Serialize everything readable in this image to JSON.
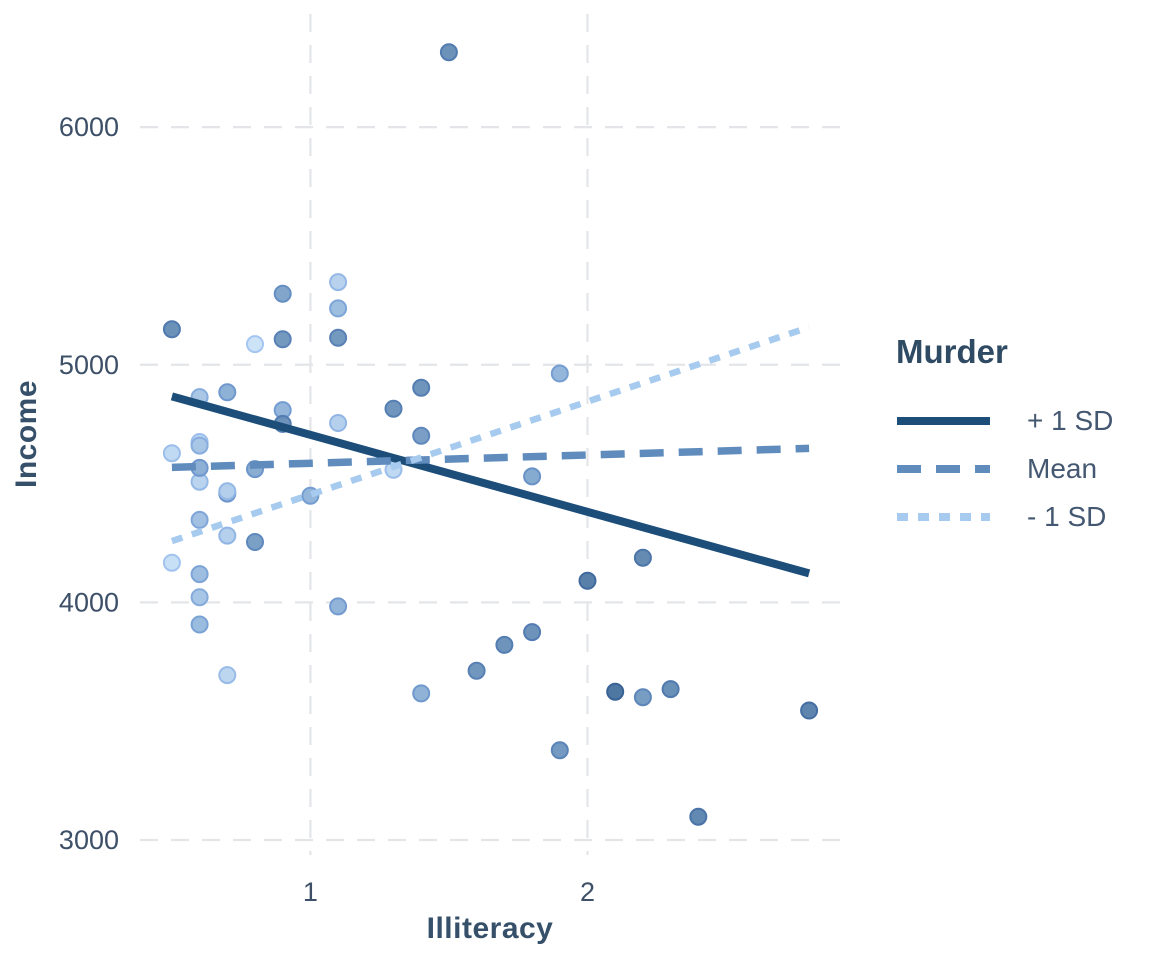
{
  "colors": {
    "background": "#ffffff",
    "grid": "#e3e5e8",
    "tick_label": "#3d5068",
    "axis_title": "#36506a",
    "legend_title": "#2f4a63",
    "legend_label": "#445871",
    "point_gradient": [
      {
        "value": 1.4,
        "color": "#c9e1f8"
      },
      {
        "value": 6.0,
        "color": "#8fb3d9"
      },
      {
        "value": 15.1,
        "color": "#45709c"
      }
    ]
  },
  "chart_data": {
    "type": "scatter",
    "title": "",
    "xlabel": "Illiteracy",
    "ylabel": "Income",
    "legend_title": "Murder",
    "legend_position": "right",
    "grid": true,
    "x_ticks": [
      1,
      2
    ],
    "y_ticks": [
      3000,
      4000,
      5000,
      6000
    ],
    "xlim": [
      0.385,
      2.915
    ],
    "ylim": [
      2937,
      6476
    ],
    "point_fields": [
      "illiteracy",
      "income",
      "murder"
    ],
    "points": [
      [
        2.1,
        3624,
        15.1
      ],
      [
        1.5,
        6315,
        11.3
      ],
      [
        1.8,
        4530,
        7.8
      ],
      [
        1.9,
        3378,
        10.1
      ],
      [
        1.1,
        5114,
        10.3
      ],
      [
        0.7,
        4884,
        6.8
      ],
      [
        1.1,
        5348,
        3.1
      ],
      [
        0.9,
        4809,
        6.2
      ],
      [
        1.3,
        4815,
        10.7
      ],
      [
        2.0,
        4091,
        13.9
      ],
      [
        1.9,
        4963,
        6.2
      ],
      [
        0.6,
        4119,
        5.3
      ],
      [
        0.9,
        5107,
        10.3
      ],
      [
        0.7,
        4458,
        7.1
      ],
      [
        0.5,
        4628,
        2.3
      ],
      [
        0.6,
        4669,
        4.5
      ],
      [
        1.6,
        3712,
        10.6
      ],
      [
        2.8,
        3545,
        13.2
      ],
      [
        0.7,
        3694,
        2.7
      ],
      [
        0.9,
        5299,
        8.5
      ],
      [
        1.1,
        4755,
        3.3
      ],
      [
        0.9,
        4751,
        11.1
      ],
      [
        0.6,
        4675,
        2.3
      ],
      [
        2.4,
        3098,
        12.5
      ],
      [
        0.8,
        4254,
        9.3
      ],
      [
        0.6,
        4347,
        5.0
      ],
      [
        0.6,
        4508,
        2.9
      ],
      [
        0.5,
        5149,
        11.5
      ],
      [
        0.7,
        4281,
        3.3
      ],
      [
        1.1,
        5237,
        5.2
      ],
      [
        2.2,
        3601,
        9.7
      ],
      [
        1.4,
        4903,
        10.9
      ],
      [
        1.8,
        3875,
        11.1
      ],
      [
        0.8,
        5087,
        1.4
      ],
      [
        0.8,
        4561,
        7.4
      ],
      [
        1.1,
        3983,
        6.4
      ],
      [
        0.6,
        4660,
        4.2
      ],
      [
        1.0,
        4449,
        6.1
      ],
      [
        1.3,
        4558,
        2.4
      ],
      [
        2.3,
        3635,
        11.6
      ],
      [
        0.5,
        4167,
        1.7
      ],
      [
        1.7,
        3821,
        11.0
      ],
      [
        2.2,
        4188,
        12.2
      ],
      [
        0.6,
        4022,
        4.5
      ],
      [
        0.6,
        3907,
        5.5
      ],
      [
        1.4,
        4701,
        9.5
      ],
      [
        0.6,
        4864,
        4.3
      ],
      [
        1.4,
        3617,
        6.7
      ],
      [
        0.7,
        4468,
        3.0
      ],
      [
        0.6,
        4566,
        6.9
      ]
    ],
    "trend_lines": [
      {
        "label": "+ 1 SD",
        "style": "solid",
        "color": "#1d4e7a",
        "x": [
          0.5,
          2.8
        ],
        "income": [
          4867,
          4122
        ]
      },
      {
        "label": "Mean",
        "style": "dashed",
        "color": "#5f8cbc",
        "x": [
          0.5,
          2.8
        ],
        "income": [
          4568,
          4648
        ]
      },
      {
        "label": "- 1 SD",
        "style": "dotted",
        "color": "#a6cbee",
        "x": [
          0.5,
          2.8
        ],
        "income": [
          4258,
          5158
        ]
      }
    ]
  }
}
